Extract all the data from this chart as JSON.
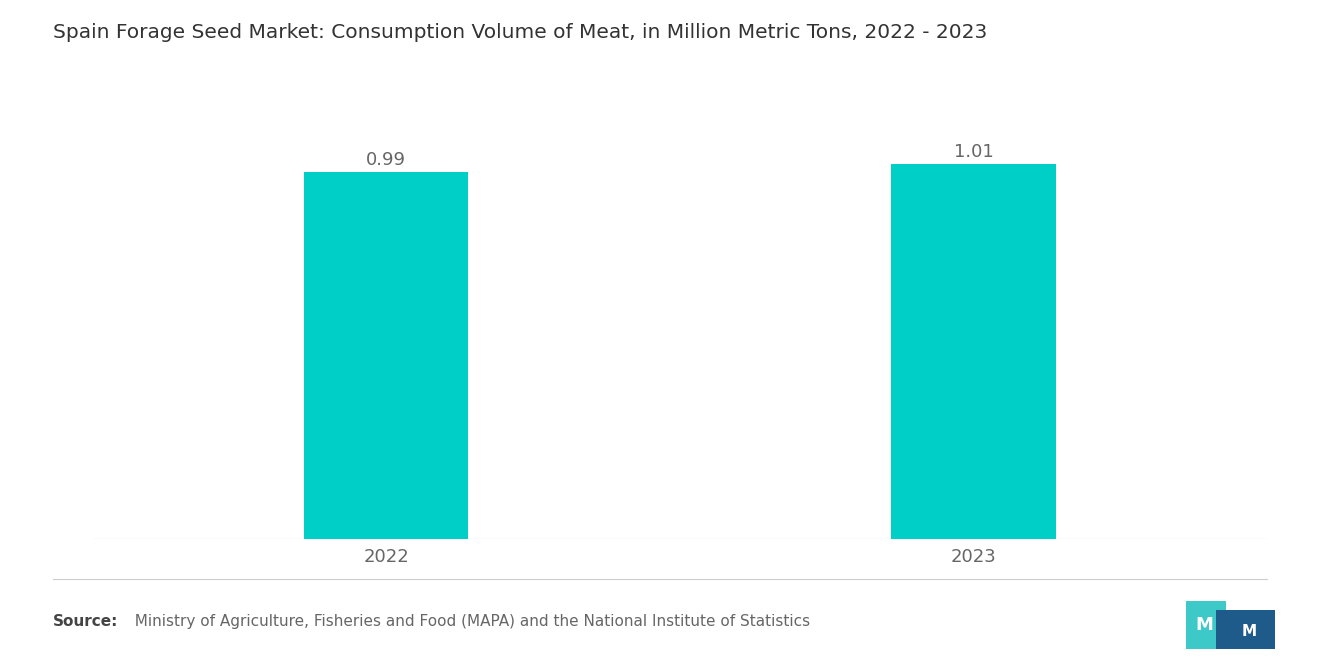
{
  "title": "Spain Forage Seed Market: Consumption Volume of Meat, in Million Metric Tons, 2022 - 2023",
  "categories": [
    "2022",
    "2023"
  ],
  "values": [
    0.99,
    1.01
  ],
  "bar_color": "#00CFC8",
  "bar_width": 0.28,
  "ylim": [
    0,
    1.22
  ],
  "value_labels": [
    "0.99",
    "1.01"
  ],
  "source_bold": "Source:",
  "source_text": "  Ministry of Agriculture, Fisheries and Food (MAPA) and the National Institute of Statistics",
  "title_fontsize": 14.5,
  "tick_fontsize": 13,
  "source_fontsize": 11,
  "background_color": "#ffffff",
  "value_label_fontsize": 13,
  "label_color": "#666666",
  "title_color": "#333333",
  "logo_teal": "#3ec9c9",
  "logo_navy": "#1e5a8a"
}
